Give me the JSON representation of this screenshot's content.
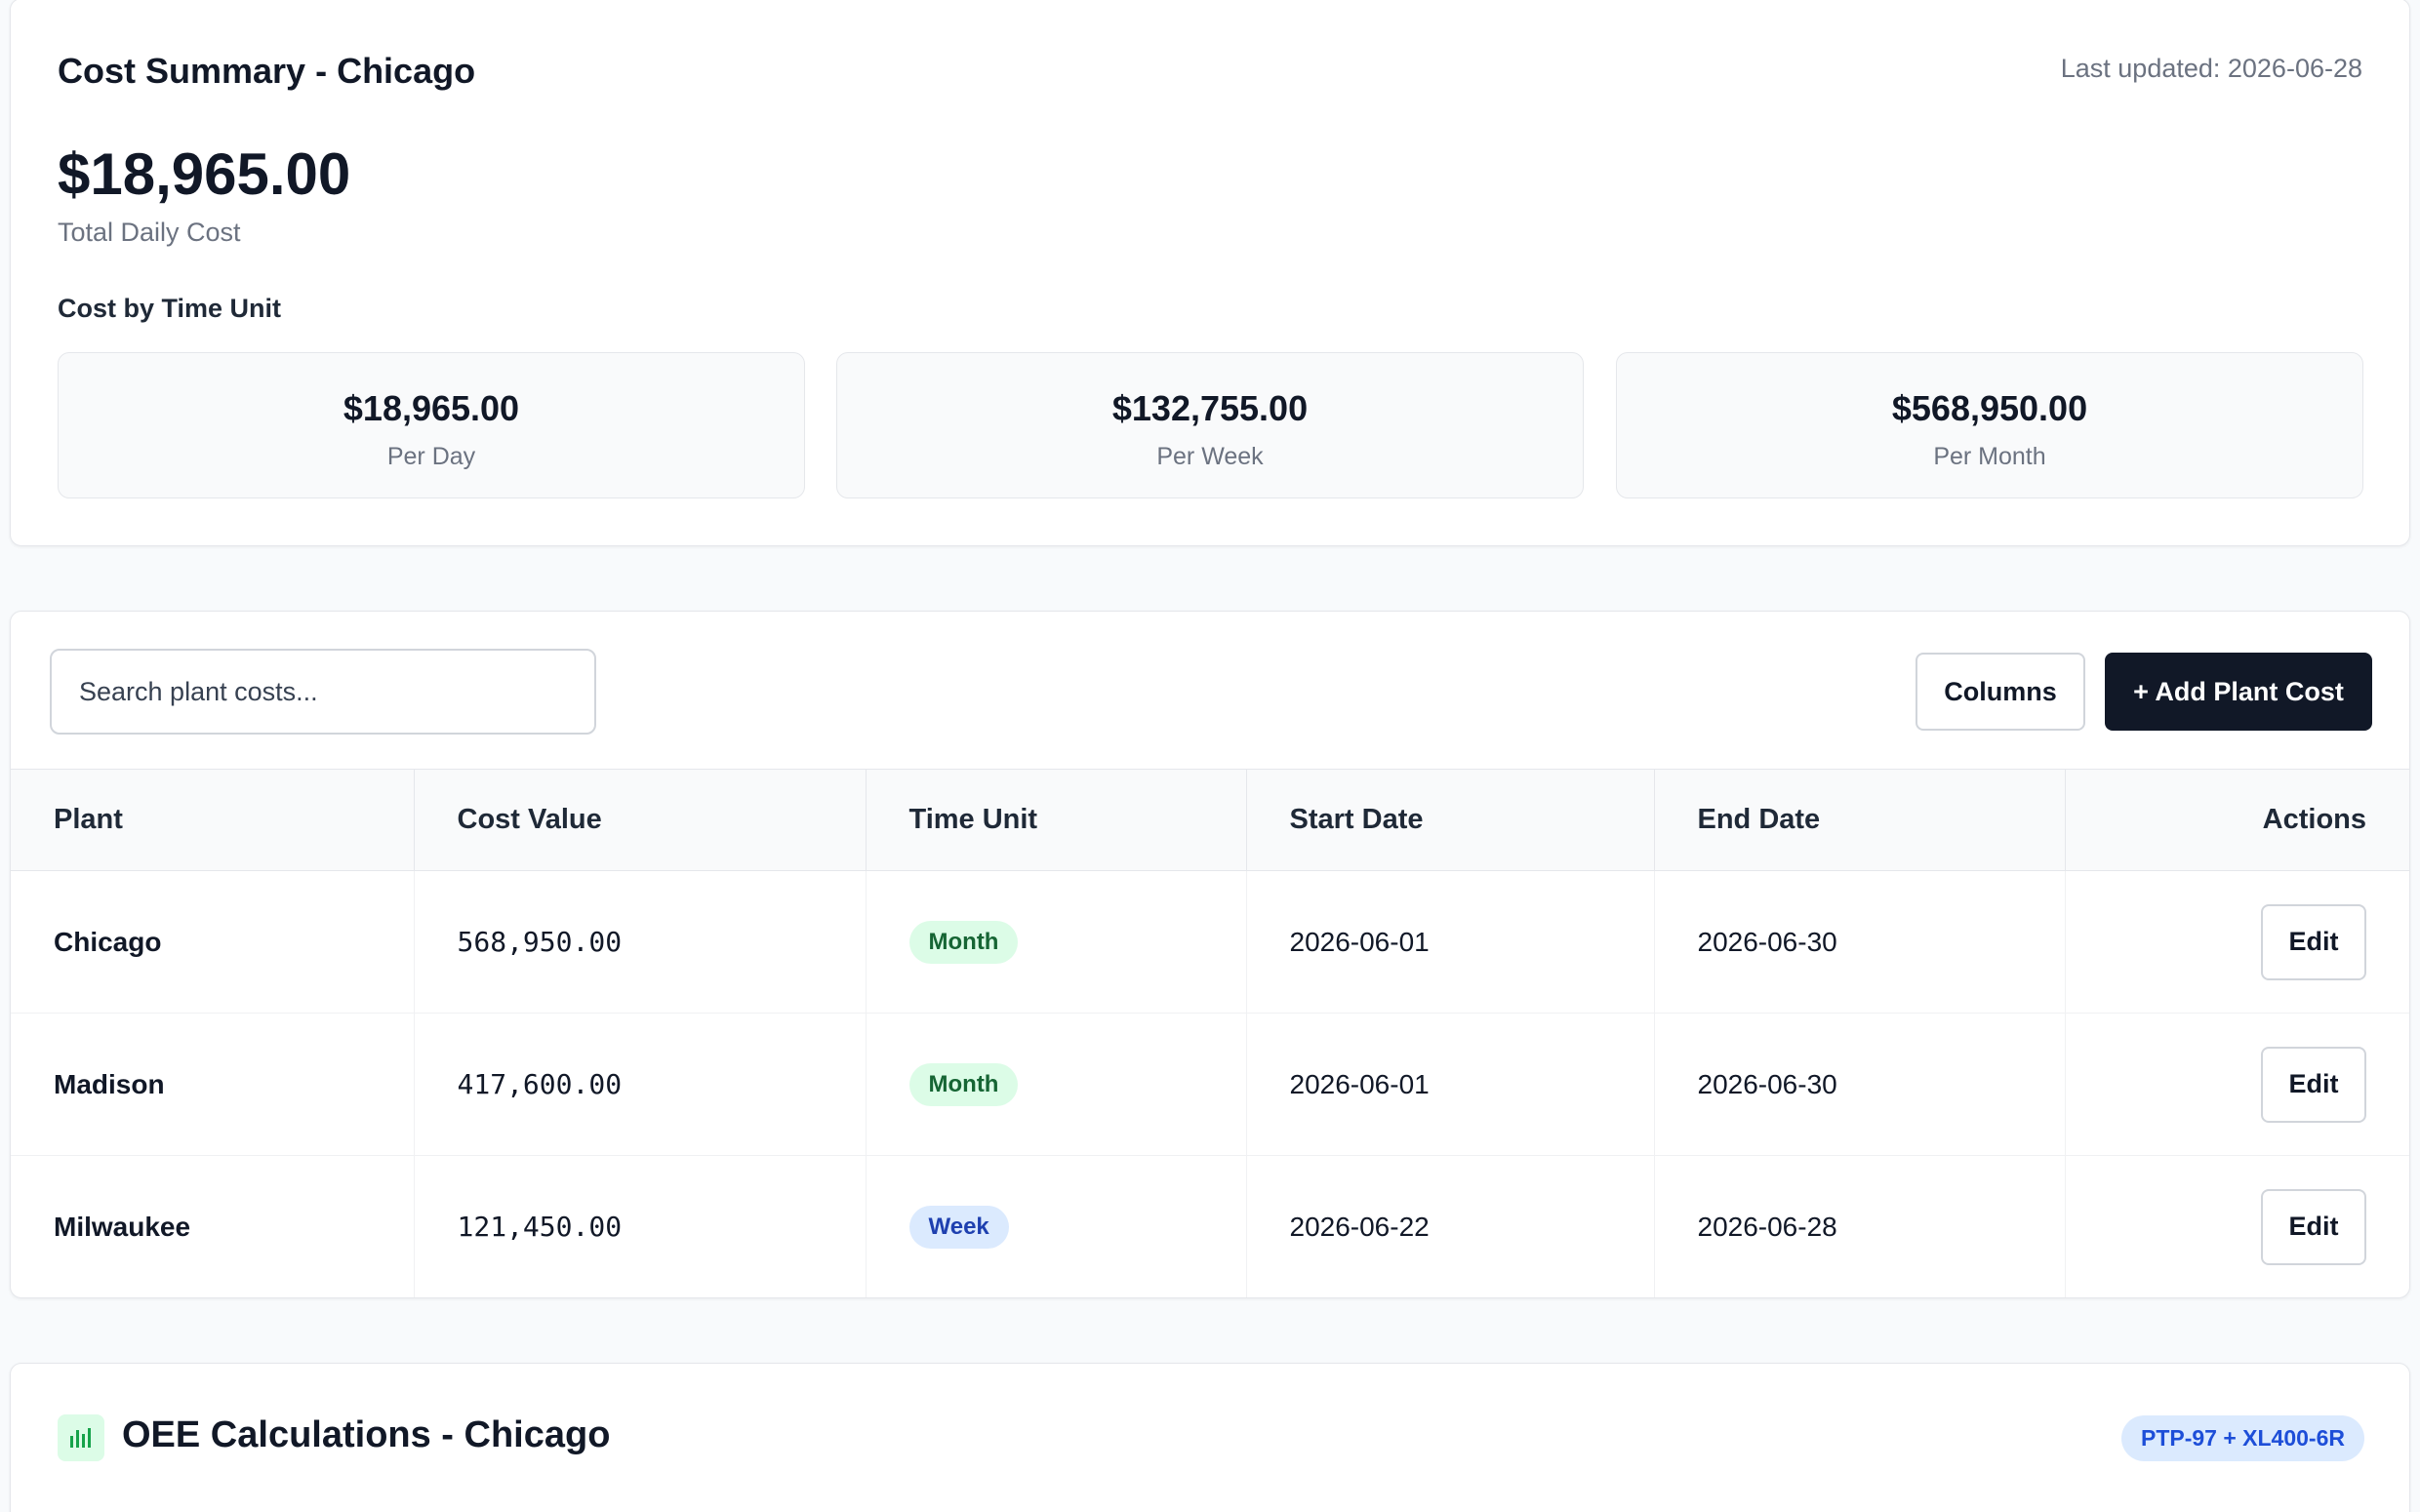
{
  "summary": {
    "title": "Cost Summary - Chicago",
    "last_updated": "Last updated: 2026-06-28",
    "total_value": "$18,965.00",
    "total_label": "Total Daily Cost",
    "time_unit_heading": "Cost by Time Unit",
    "time_units": [
      {
        "value": "$18,965.00",
        "label": "Per Day"
      },
      {
        "value": "$132,755.00",
        "label": "Per Week"
      },
      {
        "value": "$568,950.00",
        "label": "Per Month"
      }
    ]
  },
  "plant_costs": {
    "search_placeholder": "Search plant costs...",
    "columns_label": "Columns",
    "add_label": "+ Add Plant Cost",
    "headers": {
      "plant": "Plant",
      "cost_value": "Cost Value",
      "time_unit": "Time Unit",
      "start_date": "Start Date",
      "end_date": "End Date",
      "actions": "Actions"
    },
    "rows": [
      {
        "plant": "Chicago",
        "cost": "568,950.00",
        "unit": "Month",
        "start": "2026-06-01",
        "end": "2026-06-30",
        "action": "Edit"
      },
      {
        "plant": "Madison",
        "cost": "417,600.00",
        "unit": "Month",
        "start": "2026-06-01",
        "end": "2026-06-30",
        "action": "Edit"
      },
      {
        "plant": "Milwaukee",
        "cost": "121,450.00",
        "unit": "Week",
        "start": "2026-06-22",
        "end": "2026-06-28",
        "action": "Edit"
      }
    ]
  },
  "oee": {
    "title": "OEE Calculations - Chicago",
    "badge": "PTP-97 + XL400-6R",
    "icon": "bar-chart-icon",
    "icon_color": "#16a34a"
  },
  "colors": {
    "primary_button": "#111827",
    "month_badge_bg": "#dcfce7",
    "month_badge_text": "#166534",
    "week_badge_bg": "#dbeafe",
    "week_badge_text": "#1e40af"
  }
}
